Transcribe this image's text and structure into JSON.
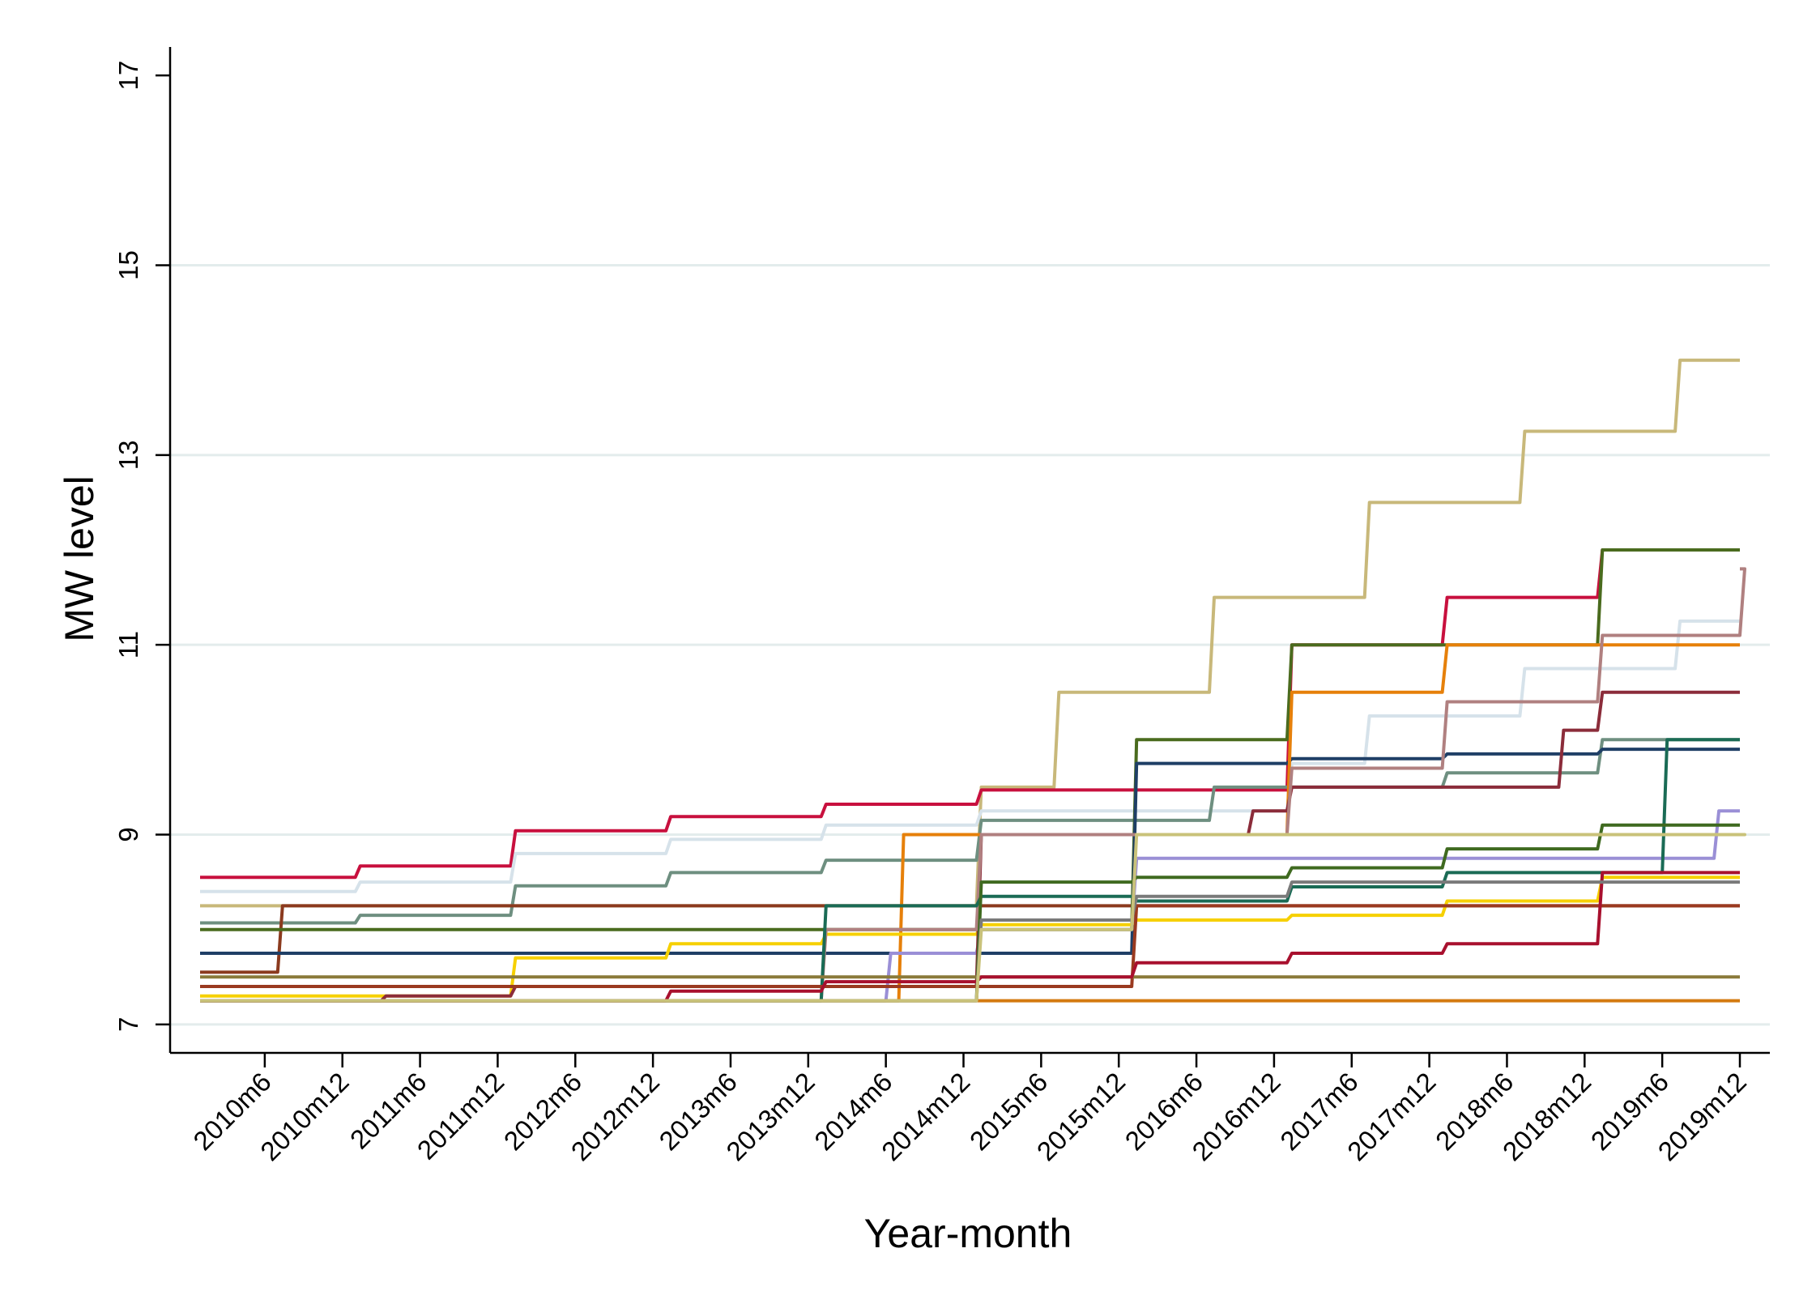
{
  "chart_data": {
    "type": "line",
    "title": "",
    "xlabel": "Year-month",
    "ylabel": "MW level",
    "x_start": "2010m1",
    "x_end": "2019m12",
    "xlim": [
      "2010m1",
      "2019m12"
    ],
    "x_ticks": [
      "2010m6",
      "2010m12",
      "2011m6",
      "2011m12",
      "2012m6",
      "2012m12",
      "2013m6",
      "2013m12",
      "2014m6",
      "2014m12",
      "2015m6",
      "2015m12",
      "2016m6",
      "2016m12",
      "2017m6",
      "2017m12",
      "2018m6",
      "2018m12",
      "2019m6",
      "2019m12"
    ],
    "y_ticks": [
      7,
      9,
      11,
      13,
      15,
      17
    ],
    "ylim": [
      6.7,
      17.3
    ],
    "grid": "horizontal",
    "legend": "none",
    "series": [
      {
        "color": "#c8b87a",
        "steps": [
          [
            "2010m1",
            8.25
          ],
          [
            "2015m1",
            9.5
          ],
          [
            "2015m7",
            10.5
          ],
          [
            "2016m7",
            11.5
          ],
          [
            "2017m7",
            12.5
          ],
          [
            "2018m7",
            13.25
          ],
          [
            "2019m7",
            14.0
          ]
        ]
      },
      {
        "color": "#c8103e",
        "steps": [
          [
            "2010m1",
            8.55
          ],
          [
            "2011m1",
            8.67
          ],
          [
            "2012m1",
            9.04
          ],
          [
            "2013m1",
            9.19
          ],
          [
            "2014m1",
            9.32
          ],
          [
            "2015m1",
            9.47
          ],
          [
            "2017m1",
            11.0
          ],
          [
            "2018m1",
            11.5
          ],
          [
            "2019m1",
            12.0
          ]
        ]
      },
      {
        "color": "#d6e2ea",
        "steps": [
          [
            "2010m1",
            8.4
          ],
          [
            "2011m1",
            8.5
          ],
          [
            "2012m1",
            8.8
          ],
          [
            "2013m1",
            8.95
          ],
          [
            "2014m1",
            9.1
          ],
          [
            "2015m1",
            9.25
          ],
          [
            "2017m1",
            9.75
          ],
          [
            "2017m7",
            10.25
          ],
          [
            "2018m7",
            10.75
          ],
          [
            "2019m7",
            11.25
          ]
        ]
      },
      {
        "color": "#6e8f80",
        "steps": [
          [
            "2010m1",
            8.07
          ],
          [
            "2011m1",
            8.15
          ],
          [
            "2012m1",
            8.46
          ],
          [
            "2013m1",
            8.6
          ],
          [
            "2014m1",
            8.73
          ],
          [
            "2015m1",
            9.15
          ],
          [
            "2016m7",
            9.5
          ],
          [
            "2017m1",
            9.5
          ],
          [
            "2018m1",
            9.65
          ],
          [
            "2019m1",
            10.0
          ]
        ]
      },
      {
        "color": "#8b3a1e",
        "steps": [
          [
            "2010m1",
            7.55
          ],
          [
            "2010m7",
            8.25
          ]
        ]
      },
      {
        "color": "#4a6b1e",
        "steps": [
          [
            "2010m1",
            8.0
          ],
          [
            "2016m1",
            10.0
          ],
          [
            "2017m1",
            11.0
          ],
          [
            "2019m1",
            12.0
          ]
        ]
      },
      {
        "color": "#1f3f66",
        "steps": [
          [
            "2010m1",
            7.75
          ],
          [
            "2015m1",
            7.75
          ],
          [
            "2016m1",
            9.75
          ],
          [
            "2017m1",
            9.8
          ],
          [
            "2018m1",
            9.85
          ],
          [
            "2019m1",
            9.9
          ]
        ]
      },
      {
        "color": "#e6800a",
        "steps": [
          [
            "2010m1",
            7.25
          ],
          [
            "2014m7",
            9.0
          ],
          [
            "2015m1",
            9.0
          ],
          [
            "2017m1",
            10.5
          ],
          [
            "2018m1",
            11.0
          ]
        ]
      },
      {
        "color": "#f6d000",
        "steps": [
          [
            "2010m1",
            7.3
          ],
          [
            "2011m1",
            7.3
          ],
          [
            "2012m1",
            7.7
          ],
          [
            "2013m1",
            7.85
          ],
          [
            "2014m1",
            7.95
          ],
          [
            "2015m1",
            8.05
          ],
          [
            "2016m1",
            8.1
          ],
          [
            "2017m1",
            8.15
          ],
          [
            "2018m1",
            8.3
          ],
          [
            "2019m1",
            8.55
          ]
        ]
      },
      {
        "color": "#9a8fd6",
        "steps": [
          [
            "2010m1",
            7.25
          ],
          [
            "2014m1",
            7.25
          ],
          [
            "2014m6",
            7.75
          ],
          [
            "2015m1",
            8.0
          ],
          [
            "2016m1",
            8.75
          ],
          [
            "2019m10",
            9.25
          ]
        ]
      },
      {
        "color": "#8b2c3a",
        "steps": [
          [
            "2010m1",
            7.25
          ],
          [
            "2011m3",
            7.3
          ],
          [
            "2012m1",
            7.4
          ],
          [
            "2015m1",
            9.0
          ],
          [
            "2016m10",
            9.25
          ],
          [
            "2017m1",
            9.5
          ],
          [
            "2018m10",
            10.1
          ],
          [
            "2019m1",
            10.5
          ]
        ]
      },
      {
        "color": "#b08080",
        "steps": [
          [
            "2010m1",
            7.25
          ],
          [
            "2014m1",
            8.0
          ],
          [
            "2015m1",
            9.0
          ],
          [
            "2017m1",
            9.7
          ],
          [
            "2018m1",
            10.4
          ],
          [
            "2019m1",
            11.1
          ],
          [
            "2019m12",
            11.8
          ]
        ]
      },
      {
        "color": "#1a6b55",
        "steps": [
          [
            "2010m1",
            7.25
          ],
          [
            "2014m1",
            8.25
          ],
          [
            "2015m1",
            8.35
          ],
          [
            "2016m1",
            8.3
          ],
          [
            "2017m1",
            8.45
          ],
          [
            "2018m1",
            8.6
          ],
          [
            "2019m1",
            8.6
          ],
          [
            "2019m6",
            10.0
          ]
        ]
      },
      {
        "color": "#3f6a20",
        "steps": [
          [
            "2010m1",
            7.25
          ],
          [
            "2015m1",
            8.5
          ],
          [
            "2016m1",
            8.55
          ],
          [
            "2017m1",
            8.65
          ],
          [
            "2018m1",
            8.85
          ],
          [
            "2019m1",
            9.1
          ]
        ]
      },
      {
        "color": "#9a3a20",
        "steps": [
          [
            "2010m1",
            7.4
          ],
          [
            "2016m1",
            8.25
          ]
        ]
      },
      {
        "color": "#8a7a3a",
        "steps": [
          [
            "2010m1",
            7.5
          ]
        ]
      },
      {
        "color": "#d47a10",
        "steps": [
          [
            "2010m1",
            7.25
          ],
          [
            "2015m1",
            7.25
          ]
        ]
      },
      {
        "color": "#a8102e",
        "steps": [
          [
            "2010m1",
            7.25
          ],
          [
            "2013m1",
            7.35
          ],
          [
            "2014m1",
            7.45
          ],
          [
            "2015m1",
            7.5
          ],
          [
            "2016m1",
            7.65
          ],
          [
            "2017m1",
            7.75
          ],
          [
            "2018m1",
            7.85
          ],
          [
            "2019m1",
            8.6
          ]
        ]
      },
      {
        "color": "#7a7a7a",
        "steps": [
          [
            "2010m1",
            7.25
          ],
          [
            "2015m1",
            8.1
          ],
          [
            "2016m1",
            8.35
          ],
          [
            "2017m1",
            8.5
          ],
          [
            "2018m1",
            8.5
          ],
          [
            "2019m1",
            8.5
          ]
        ]
      },
      {
        "color": "#c9c27a",
        "steps": [
          [
            "2010m1",
            7.25
          ],
          [
            "2015m1",
            8.0
          ],
          [
            "2016m1",
            9.0
          ],
          [
            "2019m12",
            9.0
          ]
        ]
      }
    ]
  }
}
